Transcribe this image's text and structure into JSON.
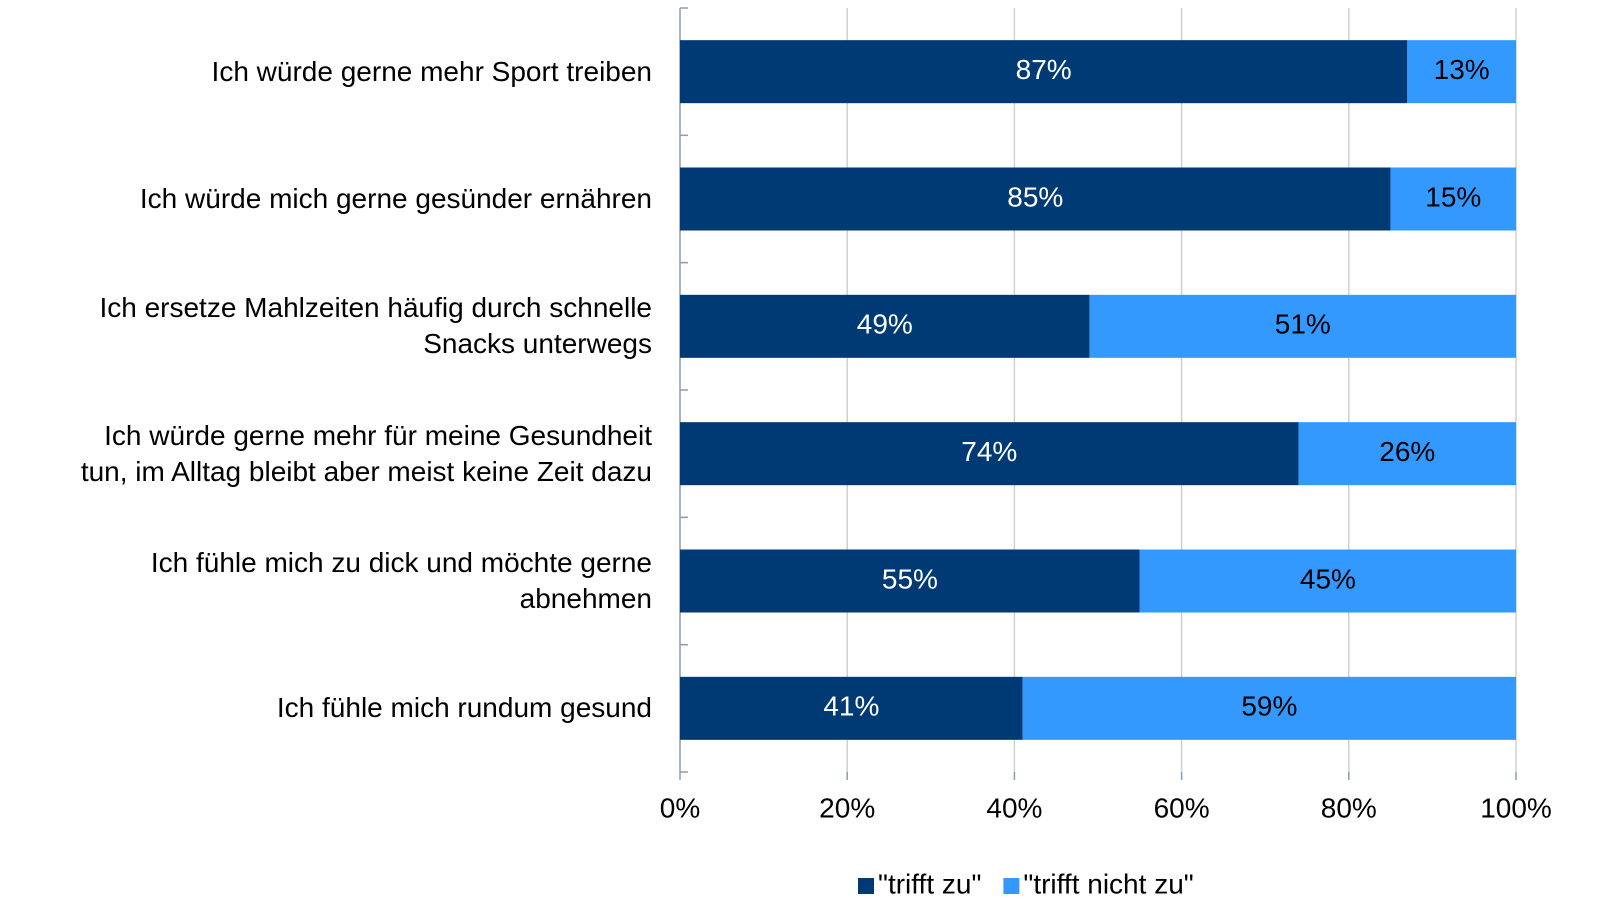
{
  "chart_data": {
    "type": "stacked-barh",
    "categories": [
      "Ich würde gerne mehr Sport treiben",
      "Ich würde mich gerne gesünder ernähren",
      "Ich ersetze Mahlzeiten häufig durch schnelle\nSnacks unterwegs",
      "Ich würde gerne mehr für meine Gesundheit \ntun, im Alltag bleibt aber meist keine Zeit dazu",
      "Ich fühle mich zu dick und möchte gerne\nabnehmen",
      "Ich fühle mich rundum gesund"
    ],
    "series": [
      {
        "name": "\"trifft zu\"",
        "color": "#003a75",
        "values": [
          87,
          85,
          49,
          74,
          55,
          41
        ],
        "value_labels": [
          "87%",
          "85%",
          "49%",
          "74%",
          "55%",
          "41%"
        ]
      },
      {
        "name": "\"trifft nicht zu\"",
        "color": "#3399ff",
        "values": [
          13,
          15,
          51,
          26,
          45,
          59
        ],
        "value_labels": [
          "13%",
          "15%",
          "51%",
          "26%",
          "45%",
          "59%"
        ]
      }
    ],
    "xlim": [
      0,
      100
    ],
    "xticks": [
      {
        "value": 0,
        "label": "0%"
      },
      {
        "value": 20,
        "label": "20%"
      },
      {
        "value": 40,
        "label": "40%"
      },
      {
        "value": 60,
        "label": "60%"
      },
      {
        "value": 80,
        "label": "80%"
      },
      {
        "value": 100,
        "label": "100%"
      }
    ],
    "grid": true,
    "legend": "bottom"
  }
}
